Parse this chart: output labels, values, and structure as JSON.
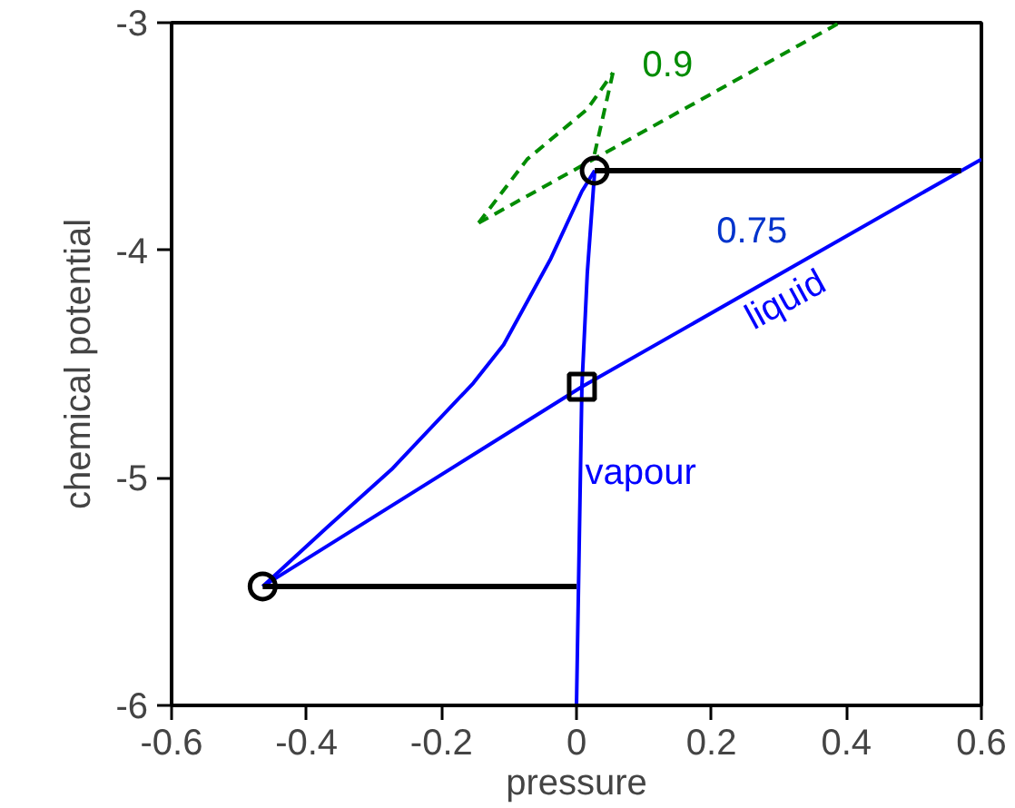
{
  "chart_data": {
    "type": "line",
    "xlabel": "pressure",
    "ylabel": "chemical potential",
    "xlim": [
      -0.6,
      0.6
    ],
    "ylim": [
      -6,
      -3
    ],
    "xticks": [
      -0.6,
      -0.4,
      -0.2,
      0,
      0.2,
      0.4,
      0.6
    ],
    "yticks": [
      -6,
      -5,
      -4,
      -3
    ],
    "grid": false,
    "series": [
      {
        "name": "vapour",
        "color": "#0000ff",
        "x": [
          0,
          0.004,
          0.008,
          0.016,
          0.027
        ],
        "values": [
          -6,
          -5.3,
          -4.6,
          -4.1,
          -3.65
        ]
      },
      {
        "color": "#0000ff",
        "x": [
          -0.465,
          -0.369,
          -0.274,
          -0.153,
          -0.108,
          -0.038,
          0.008,
          0.027
        ],
        "values": [
          -5.477,
          -5.216,
          -4.963,
          -4.584,
          -4.415,
          -4.036,
          -3.741,
          -3.649
        ]
      },
      {
        "name": "liquid",
        "color": "#0000ff",
        "x": [
          -0.465,
          0.008,
          0.6
        ],
        "values": [
          -5.477,
          -4.6,
          -3.6
        ]
      },
      {
        "color": "#000000",
        "x": [
          0.027,
          0.57
        ],
        "values": [
          -3.65,
          -3.65
        ]
      },
      {
        "color": "#000000",
        "x": [
          -0.465,
          0
        ],
        "values": [
          -5.477,
          -5.477
        ]
      },
      {
        "color": "#008c00",
        "line_style": "dashed",
        "x": [
          -0.145,
          0.39
        ],
        "values": [
          -3.88,
          -3.0
        ]
      },
      {
        "color": "#008c00",
        "line_style": "dashed",
        "x": [
          -0.145,
          -0.073,
          0.016,
          0.054
        ],
        "values": [
          -3.88,
          -3.6,
          -3.38,
          -3.22
        ]
      },
      {
        "color": "#008c00",
        "line_style": "dashed",
        "x": [
          0.054,
          0.025
        ],
        "values": [
          -3.22,
          -3.6
        ]
      },
      {
        "type": "scatter",
        "marker": "circle",
        "color": "#000000",
        "x": [
          0.027,
          -0.465
        ],
        "values": [
          -3.65,
          -5.477
        ]
      },
      {
        "type": "scatter",
        "marker": "square",
        "color": "#000000",
        "x": [
          0.008
        ],
        "values": [
          -4.6
        ]
      }
    ],
    "annotations": [
      "0.9",
      "0.75"
    ]
  }
}
